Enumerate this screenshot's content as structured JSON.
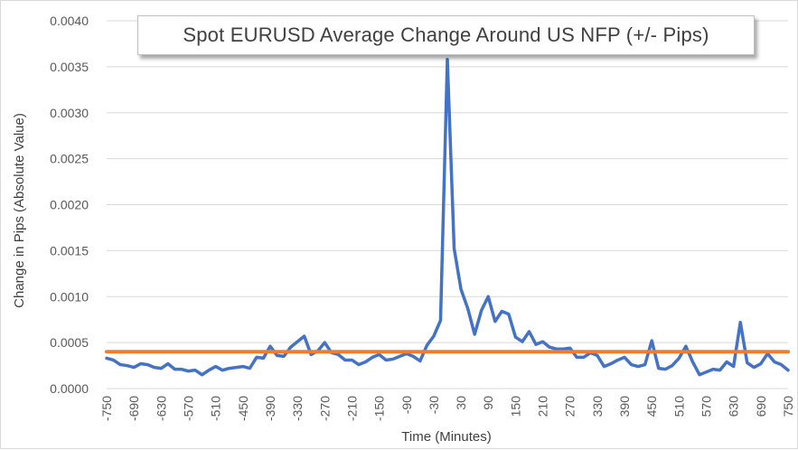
{
  "chart_data": {
    "type": "line",
    "title": "Spot EURUSD Average Change Around US NFP (+/- Pips)",
    "xlabel": "Time (Minutes)",
    "ylabel": "Change in Pips (Absolute Value)",
    "xlim": [
      -750,
      750
    ],
    "ylim": [
      0,
      0.004
    ],
    "x_ticks": [
      -750,
      -690,
      -630,
      -570,
      -510,
      -450,
      -390,
      -330,
      -270,
      -210,
      -150,
      -90,
      -30,
      30,
      90,
      150,
      210,
      270,
      330,
      390,
      450,
      510,
      570,
      630,
      690,
      750
    ],
    "y_ticks": [
      "0.0000",
      "0.0005",
      "0.0010",
      "0.0015",
      "0.0020",
      "0.0025",
      "0.0030",
      "0.0035",
      "0.0040"
    ],
    "y_tick_values": [
      0,
      0.0005,
      0.001,
      0.0015,
      0.002,
      0.0025,
      0.003,
      0.0035,
      0.004
    ],
    "grid": "horizontal",
    "legend": "none",
    "series": [
      {
        "color": "#4472c4",
        "x": [
          -750,
          -735,
          -720,
          -705,
          -690,
          -675,
          -660,
          -645,
          -630,
          -615,
          -600,
          -585,
          -570,
          -555,
          -540,
          -525,
          -510,
          -495,
          -480,
          -465,
          -450,
          -435,
          -420,
          -405,
          -390,
          -375,
          -360,
          -345,
          -330,
          -315,
          -300,
          -285,
          -270,
          -255,
          -240,
          -225,
          -210,
          -195,
          -180,
          -165,
          -150,
          -135,
          -120,
          -105,
          -90,
          -75,
          -60,
          -45,
          -30,
          -15,
          0,
          15,
          30,
          45,
          60,
          75,
          90,
          105,
          120,
          135,
          150,
          165,
          180,
          195,
          210,
          225,
          240,
          255,
          270,
          285,
          300,
          315,
          330,
          345,
          360,
          375,
          390,
          405,
          420,
          435,
          450,
          465,
          480,
          495,
          510,
          525,
          540,
          555,
          570,
          585,
          600,
          615,
          630,
          645,
          660,
          675,
          690,
          705,
          720,
          735,
          750
        ],
        "y": [
          0.00033,
          0.00031,
          0.00026,
          0.00025,
          0.00023,
          0.00027,
          0.00026,
          0.00023,
          0.00022,
          0.00027,
          0.00021,
          0.00021,
          0.00019,
          0.0002,
          0.00015,
          0.0002,
          0.00024,
          0.0002,
          0.00022,
          0.00023,
          0.00024,
          0.00022,
          0.00034,
          0.00033,
          0.00046,
          0.00036,
          0.00035,
          0.00045,
          0.00051,
          0.00057,
          0.00037,
          0.00041,
          0.0005,
          0.00039,
          0.00037,
          0.00031,
          0.00031,
          0.00026,
          0.00029,
          0.00034,
          0.00037,
          0.00031,
          0.00032,
          0.00035,
          0.00038,
          0.00035,
          0.0003,
          0.00047,
          0.00057,
          0.00074,
          0.00358,
          0.00152,
          0.00108,
          0.00087,
          0.00059,
          0.00085,
          0.001,
          0.00073,
          0.00084,
          0.00081,
          0.00056,
          0.00051,
          0.00062,
          0.00048,
          0.00051,
          0.00045,
          0.00043,
          0.00043,
          0.00044,
          0.00034,
          0.00034,
          0.00039,
          0.00036,
          0.00024,
          0.00027,
          0.00031,
          0.00034,
          0.00026,
          0.00024,
          0.00026,
          0.00052,
          0.00022,
          0.00021,
          0.00025,
          0.00033,
          0.00046,
          0.00029,
          0.00015,
          0.00018,
          0.00021,
          0.0002,
          0.00029,
          0.00024,
          0.00072,
          0.00028,
          0.00023,
          0.00027,
          0.00038,
          0.00029,
          0.00026,
          0.0002
        ]
      },
      {
        "color": "#ed7d31",
        "x": [
          -750,
          750
        ],
        "y": [
          0.0004,
          0.0004
        ]
      }
    ]
  }
}
